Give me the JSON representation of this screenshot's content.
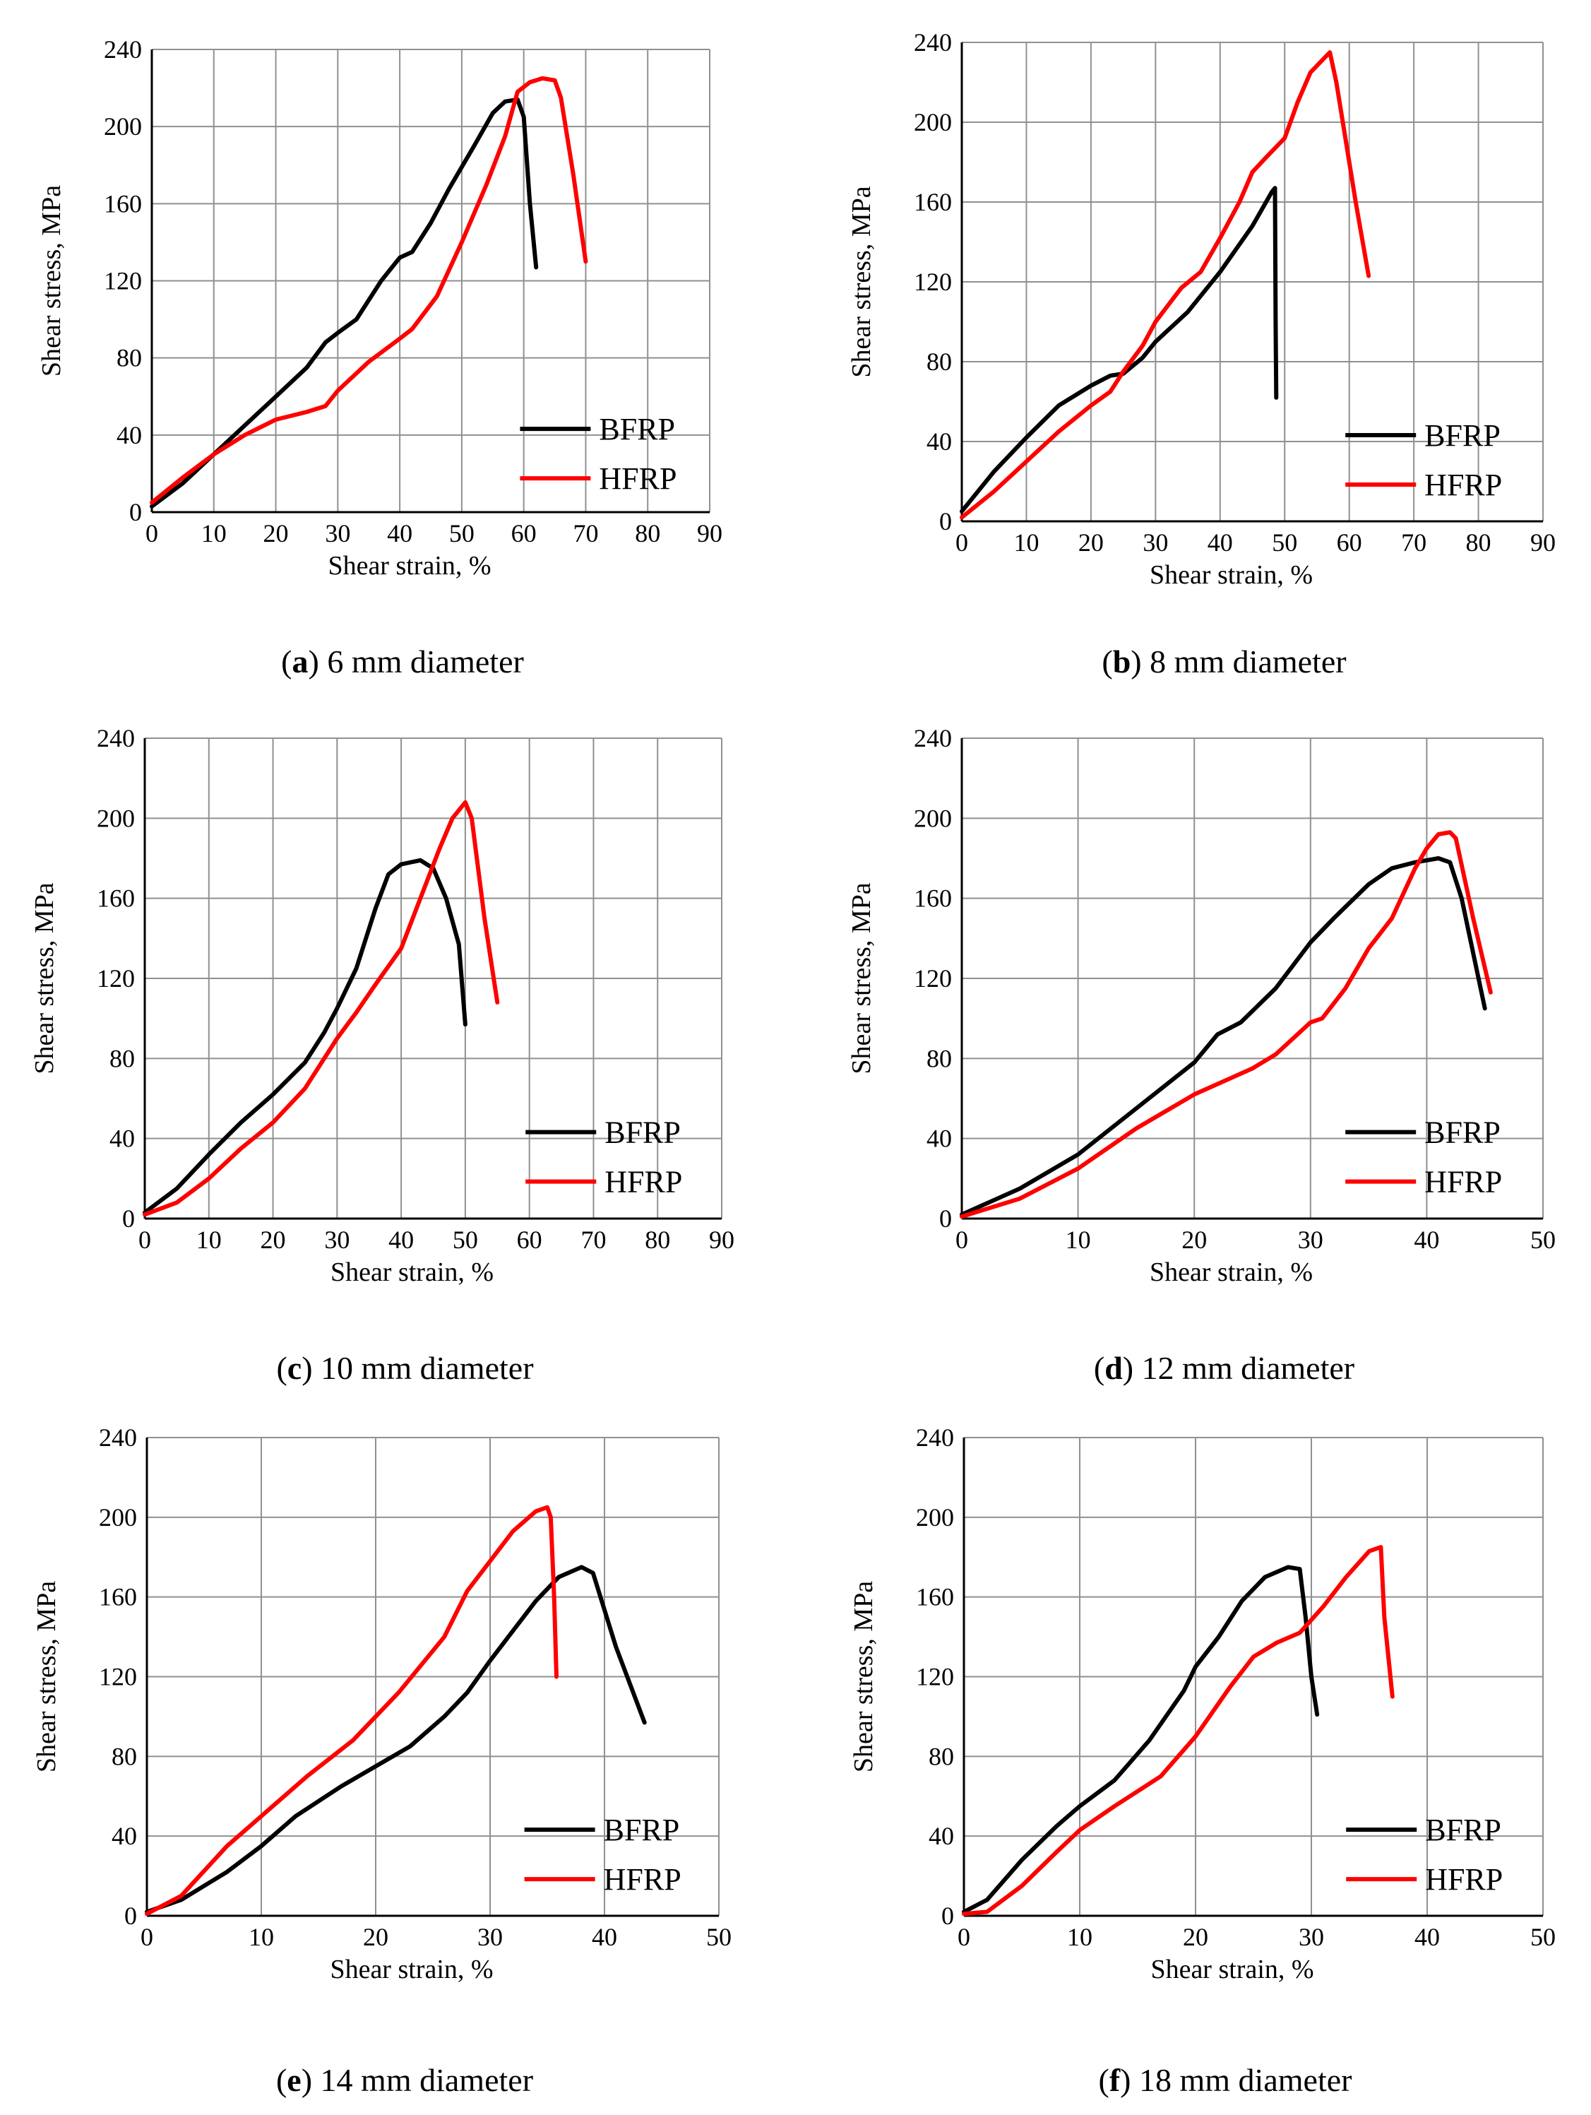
{
  "colors": {
    "BFRP": "#000000",
    "HFRP": "#ff0000",
    "grid": "#909090"
  },
  "chart_data": [
    {
      "type": "line",
      "caption_letter": "a",
      "caption_text": "6 mm diameter",
      "xlabel": "Shear strain, %",
      "ylabel": "Shear stress, MPa",
      "xlim": [
        0,
        90
      ],
      "ylim": [
        0,
        240
      ],
      "xticks": [
        0,
        10,
        20,
        30,
        40,
        50,
        60,
        70,
        80,
        90
      ],
      "yticks": [
        0,
        40,
        80,
        120,
        160,
        200,
        240
      ],
      "grid": true,
      "legend_position": "bottom-right",
      "series": [
        {
          "name": "BFRP",
          "color": "#000000",
          "points": [
            [
              0,
              3
            ],
            [
              5,
              15
            ],
            [
              10,
              30
            ],
            [
              15,
              45
            ],
            [
              20,
              60
            ],
            [
              25,
              75
            ],
            [
              28,
              88
            ],
            [
              30,
              93
            ],
            [
              33,
              100
            ],
            [
              37,
              120
            ],
            [
              40,
              132
            ],
            [
              42,
              135
            ],
            [
              45,
              150
            ],
            [
              48,
              168
            ],
            [
              52,
              190
            ],
            [
              55,
              207
            ],
            [
              57,
              213
            ],
            [
              59,
              214
            ],
            [
              60,
              205
            ],
            [
              61,
              160
            ],
            [
              62,
              127
            ]
          ]
        },
        {
          "name": "HFRP",
          "color": "#ff0000",
          "points": [
            [
              0,
              5
            ],
            [
              5,
              18
            ],
            [
              10,
              30
            ],
            [
              15,
              40
            ],
            [
              20,
              48
            ],
            [
              25,
              52
            ],
            [
              28,
              55
            ],
            [
              30,
              63
            ],
            [
              35,
              78
            ],
            [
              40,
              90
            ],
            [
              42,
              95
            ],
            [
              46,
              112
            ],
            [
              50,
              140
            ],
            [
              54,
              170
            ],
            [
              57,
              195
            ],
            [
              59,
              218
            ],
            [
              61,
              223
            ],
            [
              63,
              225
            ],
            [
              65,
              224
            ],
            [
              66,
              215
            ],
            [
              68,
              175
            ],
            [
              70,
              130
            ]
          ]
        }
      ]
    },
    {
      "type": "line",
      "caption_letter": "b",
      "caption_text": "8 mm diameter",
      "xlabel": "Shear strain, %",
      "ylabel": "Shear stress, MPa",
      "xlim": [
        0,
        90
      ],
      "ylim": [
        0,
        240
      ],
      "xticks": [
        0,
        10,
        20,
        30,
        40,
        50,
        60,
        70,
        80,
        90
      ],
      "yticks": [
        0,
        40,
        80,
        120,
        160,
        200,
        240
      ],
      "grid": true,
      "legend_position": "bottom-right",
      "series": [
        {
          "name": "BFRP",
          "color": "#000000",
          "points": [
            [
              0,
              5
            ],
            [
              5,
              25
            ],
            [
              10,
              42
            ],
            [
              15,
              58
            ],
            [
              20,
              68
            ],
            [
              23,
              73
            ],
            [
              25,
              74
            ],
            [
              28,
              82
            ],
            [
              30,
              90
            ],
            [
              35,
              105
            ],
            [
              40,
              125
            ],
            [
              45,
              148
            ],
            [
              48,
              165
            ],
            [
              48.5,
              167
            ],
            [
              48.6,
              100
            ],
            [
              48.7,
              62
            ]
          ]
        },
        {
          "name": "HFRP",
          "color": "#ff0000",
          "points": [
            [
              0,
              2
            ],
            [
              5,
              15
            ],
            [
              10,
              30
            ],
            [
              15,
              45
            ],
            [
              20,
              58
            ],
            [
              23,
              65
            ],
            [
              25,
              75
            ],
            [
              28,
              88
            ],
            [
              30,
              100
            ],
            [
              34,
              117
            ],
            [
              37,
              125
            ],
            [
              40,
              142
            ],
            [
              43,
              160
            ],
            [
              45,
              175
            ],
            [
              47,
              182
            ],
            [
              50,
              192
            ],
            [
              52,
              210
            ],
            [
              54,
              225
            ],
            [
              57,
              235
            ],
            [
              58,
              220
            ],
            [
              61,
              160
            ],
            [
              63,
              123
            ]
          ]
        }
      ]
    },
    {
      "type": "line",
      "caption_letter": "c",
      "caption_text": "10 mm diameter",
      "xlabel": "Shear strain, %",
      "ylabel": "Shear stress, MPa",
      "xlim": [
        0,
        90
      ],
      "ylim": [
        0,
        240
      ],
      "xticks": [
        0,
        10,
        20,
        30,
        40,
        50,
        60,
        70,
        80,
        90
      ],
      "yticks": [
        0,
        40,
        80,
        120,
        160,
        200,
        240
      ],
      "grid": true,
      "legend_position": "bottom-right",
      "series": [
        {
          "name": "BFRP",
          "color": "#000000",
          "points": [
            [
              0,
              3
            ],
            [
              5,
              15
            ],
            [
              10,
              32
            ],
            [
              15,
              48
            ],
            [
              20,
              62
            ],
            [
              25,
              78
            ],
            [
              28,
              93
            ],
            [
              30,
              105
            ],
            [
              33,
              125
            ],
            [
              36,
              155
            ],
            [
              38,
              172
            ],
            [
              40,
              177
            ],
            [
              43,
              179
            ],
            [
              45,
              175
            ],
            [
              47,
              160
            ],
            [
              49,
              137
            ],
            [
              50,
              97
            ]
          ]
        },
        {
          "name": "HFRP",
          "color": "#ff0000",
          "points": [
            [
              0,
              2
            ],
            [
              5,
              8
            ],
            [
              10,
              20
            ],
            [
              15,
              35
            ],
            [
              20,
              48
            ],
            [
              25,
              65
            ],
            [
              30,
              90
            ],
            [
              33,
              103
            ],
            [
              36,
              117
            ],
            [
              40,
              135
            ],
            [
              43,
              160
            ],
            [
              46,
              185
            ],
            [
              48,
              200
            ],
            [
              50,
              208
            ],
            [
              51,
              200
            ],
            [
              53,
              150
            ],
            [
              55,
              108
            ]
          ]
        }
      ]
    },
    {
      "type": "line",
      "caption_letter": "d",
      "caption_text": "12 mm diameter",
      "xlabel": "Shear strain, %",
      "ylabel": "Shear stress, MPa",
      "xlim": [
        0,
        50
      ],
      "ylim": [
        0,
        240
      ],
      "xticks": [
        0,
        10,
        20,
        30,
        40,
        50
      ],
      "yticks": [
        0,
        40,
        80,
        120,
        160,
        200,
        240
      ],
      "grid": true,
      "legend_position": "bottom-right",
      "series": [
        {
          "name": "BFRP",
          "color": "#000000",
          "points": [
            [
              0,
              2
            ],
            [
              5,
              15
            ],
            [
              10,
              32
            ],
            [
              15,
              55
            ],
            [
              20,
              78
            ],
            [
              22,
              92
            ],
            [
              24,
              98
            ],
            [
              27,
              115
            ],
            [
              30,
              138
            ],
            [
              32,
              150
            ],
            [
              35,
              167
            ],
            [
              37,
              175
            ],
            [
              39,
              178
            ],
            [
              41,
              180
            ],
            [
              42,
              178
            ],
            [
              43,
              160
            ],
            [
              45,
              105
            ]
          ]
        },
        {
          "name": "HFRP",
          "color": "#ff0000",
          "points": [
            [
              0,
              1
            ],
            [
              5,
              10
            ],
            [
              10,
              25
            ],
            [
              15,
              45
            ],
            [
              20,
              62
            ],
            [
              25,
              75
            ],
            [
              27,
              82
            ],
            [
              30,
              98
            ],
            [
              31,
              100
            ],
            [
              33,
              115
            ],
            [
              35,
              135
            ],
            [
              37,
              150
            ],
            [
              39,
              175
            ],
            [
              40,
              185
            ],
            [
              41,
              192
            ],
            [
              42,
              193
            ],
            [
              42.5,
              190
            ],
            [
              44,
              150
            ],
            [
              45.5,
              113
            ]
          ]
        }
      ]
    },
    {
      "type": "line",
      "caption_letter": "e",
      "caption_text": "14 mm diameter",
      "xlabel": "Shear strain, %",
      "ylabel": "Shear stress, MPa",
      "xlim": [
        0,
        50
      ],
      "ylim": [
        0,
        240
      ],
      "xticks": [
        0,
        10,
        20,
        30,
        40,
        50
      ],
      "yticks": [
        0,
        40,
        80,
        120,
        160,
        200,
        240
      ],
      "grid": true,
      "legend_position": "bottom-right",
      "series": [
        {
          "name": "BFRP",
          "color": "#000000",
          "points": [
            [
              0,
              2
            ],
            [
              3,
              8
            ],
            [
              7,
              22
            ],
            [
              10,
              35
            ],
            [
              13,
              50
            ],
            [
              17,
              65
            ],
            [
              20,
              75
            ],
            [
              23,
              85
            ],
            [
              26,
              100
            ],
            [
              28,
              112
            ],
            [
              30,
              128
            ],
            [
              32,
              143
            ],
            [
              34,
              158
            ],
            [
              36,
              170
            ],
            [
              38,
              175
            ],
            [
              39,
              172
            ],
            [
              41,
              135
            ],
            [
              43.5,
              97
            ]
          ]
        },
        {
          "name": "HFRP",
          "color": "#ff0000",
          "points": [
            [
              0,
              1
            ],
            [
              3,
              10
            ],
            [
              7,
              35
            ],
            [
              10,
              50
            ],
            [
              14,
              70
            ],
            [
              18,
              88
            ],
            [
              22,
              112
            ],
            [
              26,
              140
            ],
            [
              28,
              163
            ],
            [
              30,
              178
            ],
            [
              32,
              193
            ],
            [
              34,
              203
            ],
            [
              35,
              205
            ],
            [
              35.3,
              200
            ],
            [
              35.6,
              160
            ],
            [
              35.8,
              120
            ]
          ]
        }
      ]
    },
    {
      "type": "line",
      "caption_letter": "f",
      "caption_text": "18 mm diameter",
      "xlabel": "Shear strain, %",
      "ylabel": "Shear stress, MPa",
      "xlim": [
        0,
        50
      ],
      "ylim": [
        0,
        240
      ],
      "xticks": [
        0,
        10,
        20,
        30,
        40,
        50
      ],
      "yticks": [
        0,
        40,
        80,
        120,
        160,
        200,
        240
      ],
      "grid": true,
      "legend_position": "bottom-right",
      "series": [
        {
          "name": "BFRP",
          "color": "#000000",
          "points": [
            [
              0,
              2
            ],
            [
              2,
              8
            ],
            [
              5,
              28
            ],
            [
              8,
              45
            ],
            [
              10,
              55
            ],
            [
              13,
              68
            ],
            [
              16,
              88
            ],
            [
              19,
              113
            ],
            [
              20,
              125
            ],
            [
              22,
              140
            ],
            [
              24,
              158
            ],
            [
              26,
              170
            ],
            [
              28,
              175
            ],
            [
              29,
              174
            ],
            [
              29.5,
              150
            ],
            [
              30,
              120
            ],
            [
              30.5,
              101
            ]
          ]
        },
        {
          "name": "HFRP",
          "color": "#ff0000",
          "points": [
            [
              0,
              1
            ],
            [
              2,
              2
            ],
            [
              5,
              15
            ],
            [
              8,
              32
            ],
            [
              10,
              43
            ],
            [
              13,
              55
            ],
            [
              17,
              70
            ],
            [
              20,
              90
            ],
            [
              23,
              115
            ],
            [
              25,
              130
            ],
            [
              27,
              137
            ],
            [
              29,
              142
            ],
            [
              31,
              155
            ],
            [
              33,
              170
            ],
            [
              35,
              183
            ],
            [
              36,
              185
            ],
            [
              36.3,
              150
            ],
            [
              37,
              110
            ]
          ]
        }
      ]
    }
  ]
}
